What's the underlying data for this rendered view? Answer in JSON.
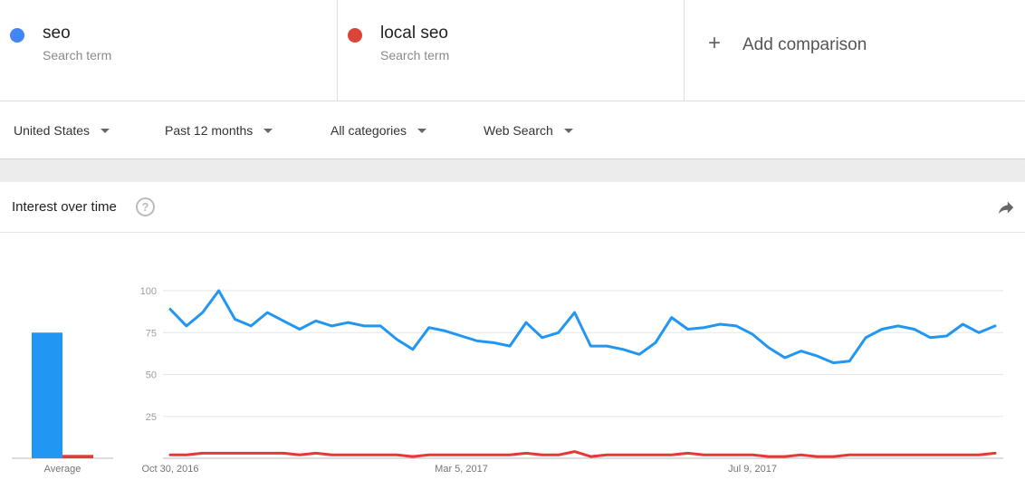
{
  "terms": [
    {
      "name": "seo",
      "type": "Search term",
      "color": "#4285f4"
    },
    {
      "name": "local seo",
      "type": "Search term",
      "color": "#db4437"
    }
  ],
  "add_comparison": {
    "icon": "plus-icon",
    "label": "Add comparison"
  },
  "filters": {
    "region": "United States",
    "time": "Past 12 months",
    "category": "All categories",
    "search_type": "Web Search"
  },
  "panel": {
    "title": "Interest over time",
    "help_icon": "help-icon",
    "share_icon": "share-icon"
  },
  "colors": {
    "seo": "#2196f3",
    "local_seo": "#e53935",
    "grid": "#e6e6e6",
    "axis_text": "#9e9e9e"
  },
  "chart_data": {
    "type": "line",
    "y_ticks": [
      25,
      50,
      75,
      100
    ],
    "ylim": [
      0,
      100
    ],
    "x_tick_labels": [
      {
        "index": 0,
        "label": "Oct 30, 2016"
      },
      {
        "index": 18,
        "label": "Mar 5, 2017"
      },
      {
        "index": 36,
        "label": "Jul 9, 2017"
      }
    ],
    "average": {
      "label": "Average",
      "values": {
        "seo": 75,
        "local_seo": 2
      }
    },
    "series": [
      {
        "name": "seo",
        "color": "#2196f3",
        "values": [
          89,
          79,
          87,
          100,
          83,
          79,
          87,
          82,
          77,
          82,
          79,
          81,
          79,
          79,
          71,
          65,
          78,
          76,
          73,
          70,
          69,
          67,
          81,
          72,
          75,
          87,
          67,
          67,
          65,
          62,
          69,
          84,
          77,
          78,
          80,
          79,
          74,
          66,
          60,
          64,
          61,
          57,
          58,
          72,
          77,
          79,
          77,
          72,
          73,
          80,
          75,
          79
        ]
      },
      {
        "name": "local seo",
        "color": "#e53935",
        "values": [
          2,
          2,
          3,
          3,
          3,
          3,
          3,
          3,
          2,
          3,
          2,
          2,
          2,
          2,
          2,
          1,
          2,
          2,
          2,
          2,
          2,
          2,
          3,
          2,
          2,
          4,
          1,
          2,
          2,
          2,
          2,
          2,
          3,
          2,
          2,
          2,
          2,
          1,
          1,
          2,
          1,
          1,
          2,
          2,
          2,
          2,
          2,
          2,
          2,
          2,
          2,
          3
        ]
      }
    ]
  }
}
